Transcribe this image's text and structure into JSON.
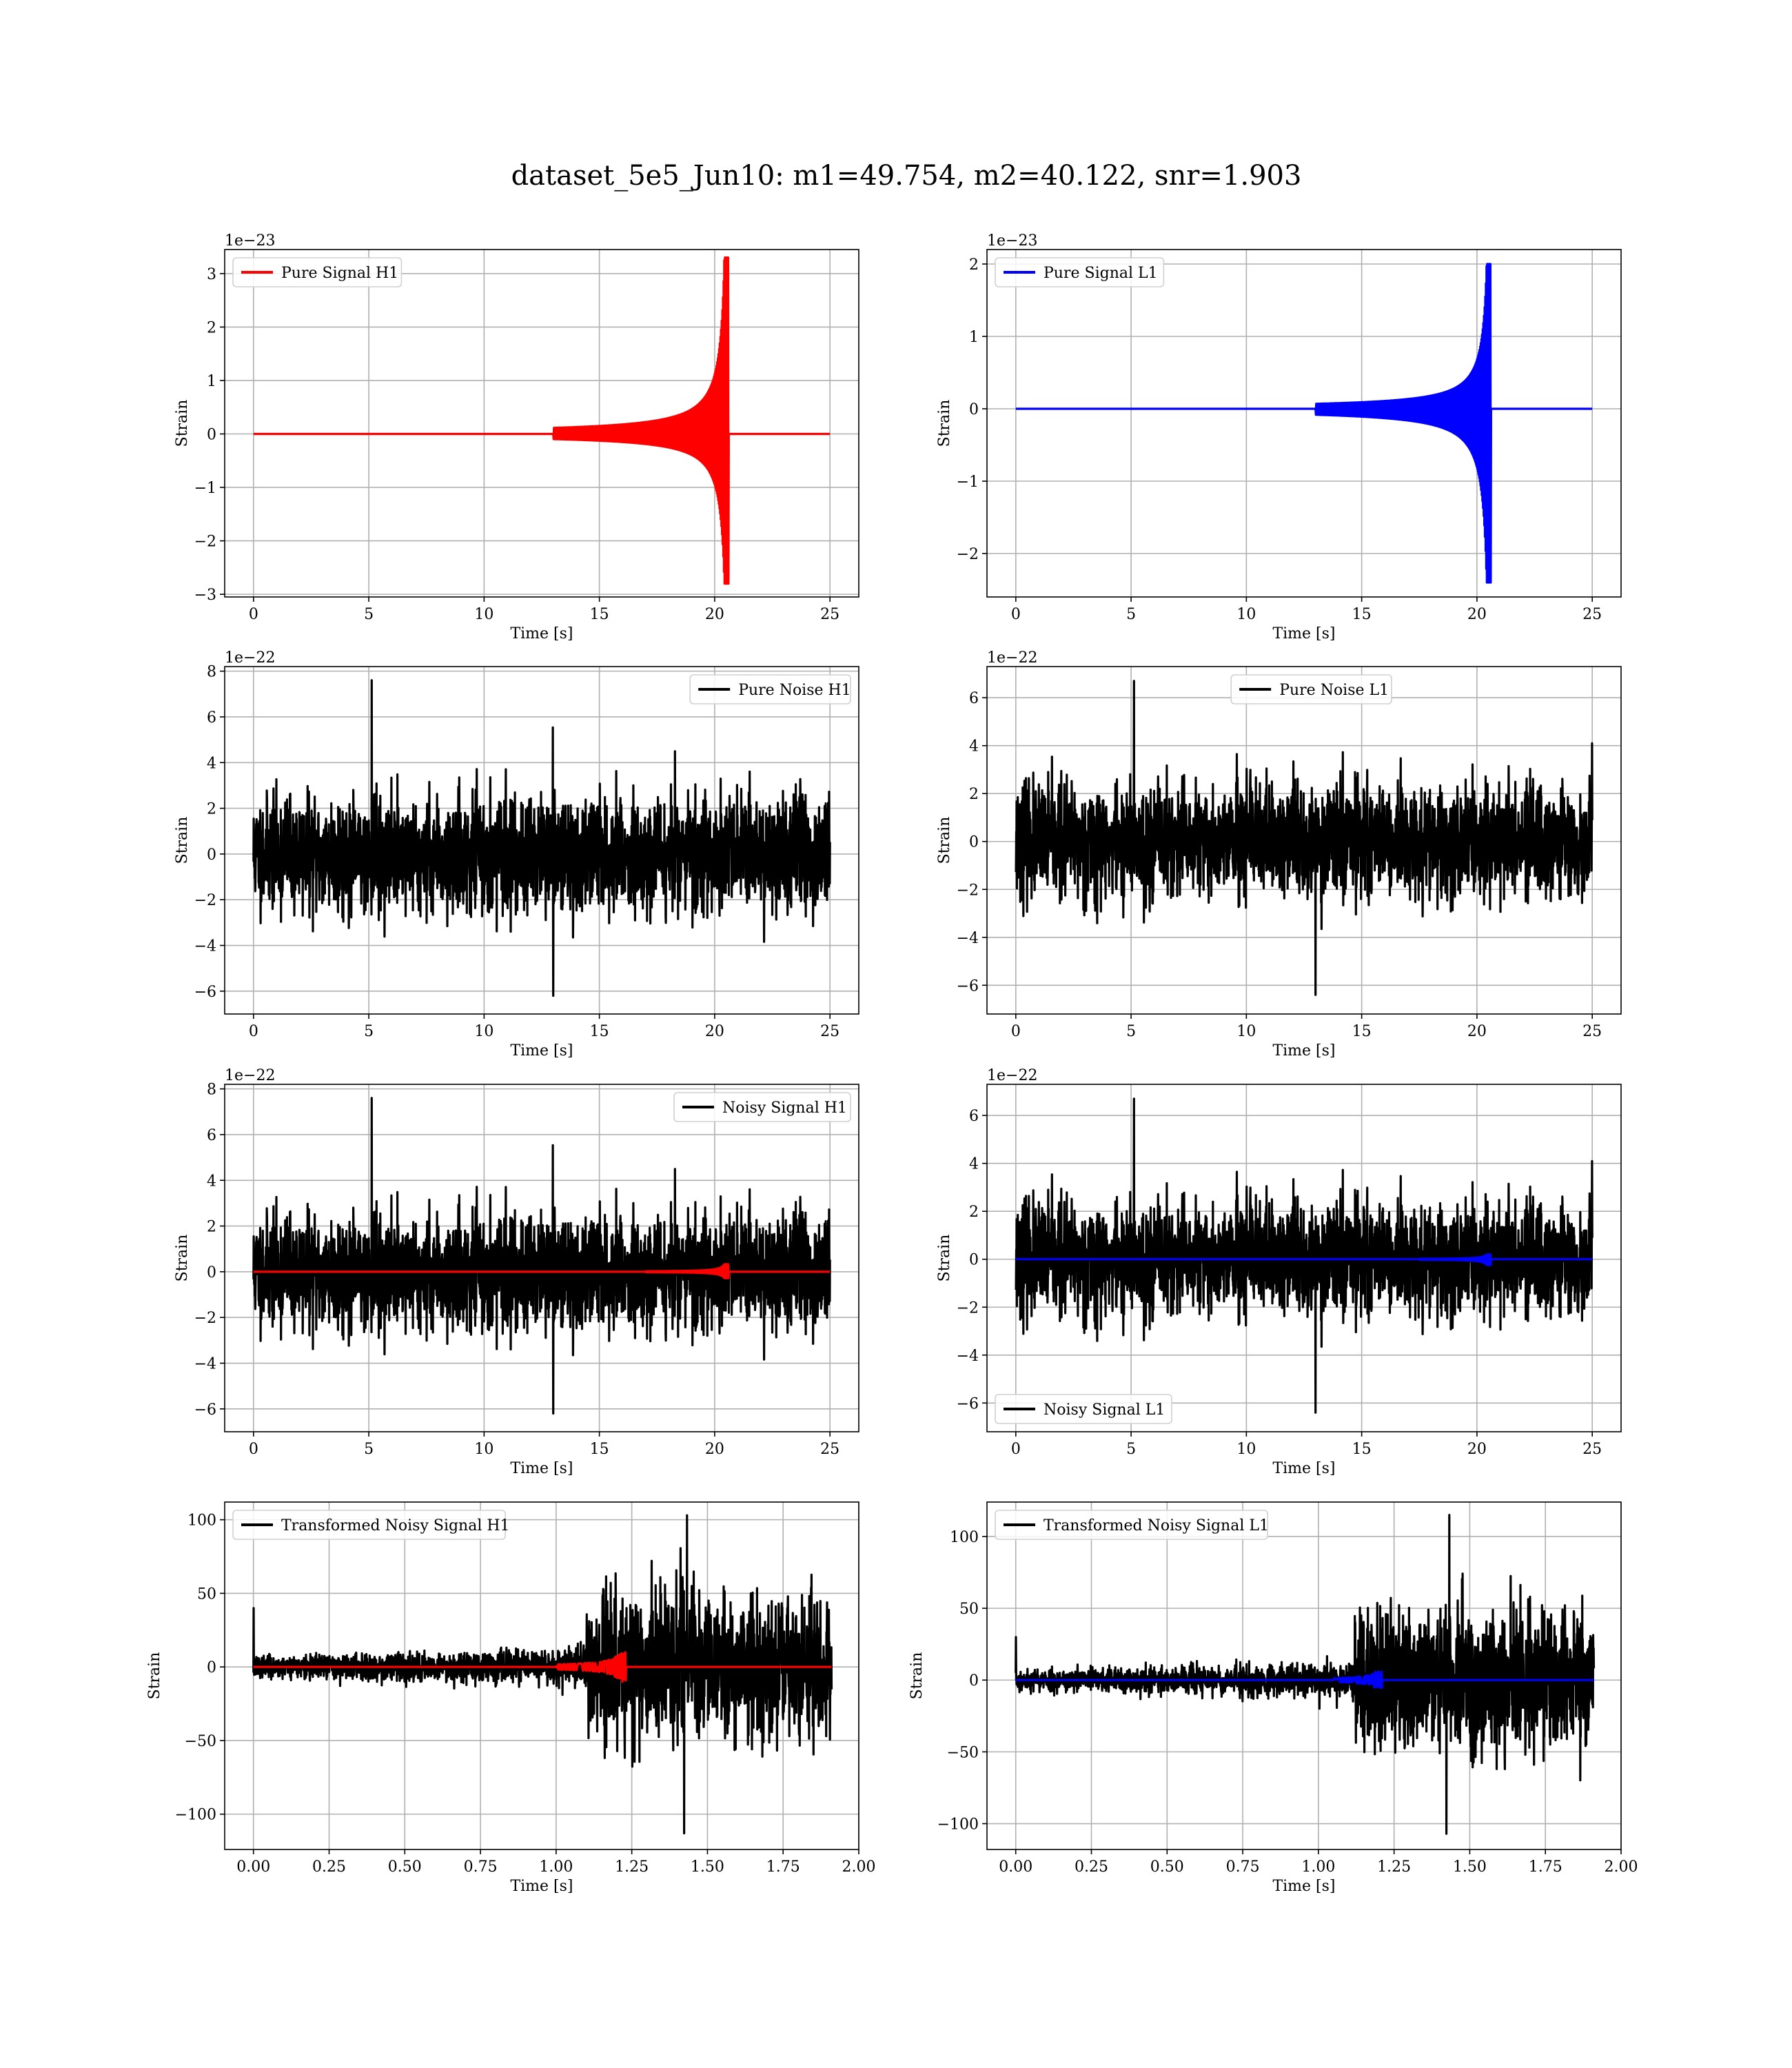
{
  "suptitle": "dataset_5e5_Jun10: m1=49.754, m2=40.122, snr=1.903",
  "chart_data": [
    {
      "id": "pure-signal-h1",
      "type": "line",
      "offset_label": "1e−23",
      "xlabel": "Time [s]",
      "ylabel": "Strain",
      "xlim": [
        -1.25,
        26.25
      ],
      "ylim": [
        -3.05,
        3.45
      ],
      "xticks": [
        0,
        5,
        10,
        15,
        20,
        25
      ],
      "yticks": [
        -3,
        -2,
        -1,
        0,
        1,
        2,
        3
      ],
      "ytick_labels": [
        "−3",
        "−2",
        "−1",
        "0",
        "1",
        "2",
        "3"
      ],
      "xtick_labels": [
        "0",
        "5",
        "10",
        "15",
        "20",
        "25"
      ],
      "grid": true,
      "legend": "top-left",
      "series": [
        {
          "name": "Pure Signal H1",
          "color": "#ff0000",
          "kind": "chirp",
          "t_range": [
            0,
            25
          ],
          "merger_time": 20.6,
          "peak_pos": 3.3,
          "peak_neg": -2.8,
          "onset_time": 13.0
        }
      ]
    },
    {
      "id": "pure-signal-l1",
      "type": "line",
      "offset_label": "1e−23",
      "xlabel": "Time [s]",
      "ylabel": "Strain",
      "xlim": [
        -1.25,
        26.25
      ],
      "ylim": [
        -2.6,
        2.2
      ],
      "xticks": [
        0,
        5,
        10,
        15,
        20,
        25
      ],
      "yticks": [
        -2,
        -1,
        0,
        1,
        2
      ],
      "ytick_labels": [
        "−2",
        "−1",
        "0",
        "1",
        "2"
      ],
      "xtick_labels": [
        "0",
        "5",
        "10",
        "15",
        "20",
        "25"
      ],
      "grid": true,
      "legend": "top-left",
      "series": [
        {
          "name": "Pure Signal L1",
          "color": "#0000ff",
          "kind": "chirp",
          "t_range": [
            0,
            25
          ],
          "merger_time": 20.6,
          "peak_pos": 2.0,
          "peak_neg": -2.4,
          "onset_time": 13.0
        }
      ]
    },
    {
      "id": "pure-noise-h1",
      "type": "line",
      "offset_label": "1e−22",
      "xlabel": "Time [s]",
      "ylabel": "Strain",
      "xlim": [
        -1.25,
        26.25
      ],
      "ylim": [
        -7.0,
        8.2
      ],
      "xticks": [
        0,
        5,
        10,
        15,
        20,
        25
      ],
      "yticks": [
        -6,
        -4,
        -2,
        0,
        2,
        4,
        6,
        8
      ],
      "ytick_labels": [
        "−6",
        "−4",
        "−2",
        "0",
        "2",
        "4",
        "6",
        "8"
      ],
      "xtick_labels": [
        "0",
        "5",
        "10",
        "15",
        "20",
        "25"
      ],
      "grid": true,
      "legend": "top-right",
      "series": [
        {
          "name": "Pure Noise H1",
          "color": "#000000",
          "kind": "noise",
          "t_range": [
            0,
            25
          ],
          "sigma": 1.2,
          "max": 7.6,
          "min": -6.2,
          "seed": 11
        }
      ]
    },
    {
      "id": "pure-noise-l1",
      "type": "line",
      "offset_label": "1e−22",
      "xlabel": "Time [s]",
      "ylabel": "Strain",
      "xlim": [
        -1.25,
        26.25
      ],
      "ylim": [
        -7.2,
        7.3
      ],
      "xticks": [
        0,
        5,
        10,
        15,
        20,
        25
      ],
      "yticks": [
        -6,
        -4,
        -2,
        0,
        2,
        4,
        6
      ],
      "ytick_labels": [
        "−6",
        "−4",
        "−2",
        "0",
        "2",
        "4",
        "6"
      ],
      "xtick_labels": [
        "0",
        "5",
        "10",
        "15",
        "20",
        "25"
      ],
      "grid": true,
      "legend": "top-center",
      "series": [
        {
          "name": "Pure Noise L1",
          "color": "#000000",
          "kind": "noise",
          "t_range": [
            0,
            25
          ],
          "sigma": 1.15,
          "max": 6.7,
          "min": -6.4,
          "seed": 23
        }
      ]
    },
    {
      "id": "noisy-signal-h1",
      "type": "line",
      "offset_label": "1e−22",
      "xlabel": "Time [s]",
      "ylabel": "Strain",
      "xlim": [
        -1.25,
        26.25
      ],
      "ylim": [
        -7.0,
        8.2
      ],
      "xticks": [
        0,
        5,
        10,
        15,
        20,
        25
      ],
      "yticks": [
        -6,
        -4,
        -2,
        0,
        2,
        4,
        6,
        8
      ],
      "ytick_labels": [
        "−6",
        "−4",
        "−2",
        "0",
        "2",
        "4",
        "6",
        "8"
      ],
      "xtick_labels": [
        "0",
        "5",
        "10",
        "15",
        "20",
        "25"
      ],
      "grid": true,
      "legend": "top-right",
      "series": [
        {
          "name": "Noisy Signal H1",
          "color": "#000000",
          "kind": "noise",
          "t_range": [
            0,
            25
          ],
          "sigma": 1.2,
          "max": 7.6,
          "min": -6.2,
          "seed": 11
        },
        {
          "name": "",
          "color": "#ff0000",
          "kind": "chirp",
          "t_range": [
            0,
            25
          ],
          "merger_time": 20.6,
          "peak_pos": 0.33,
          "peak_neg": -0.28,
          "onset_time": 17.0
        }
      ]
    },
    {
      "id": "noisy-signal-l1",
      "type": "line",
      "offset_label": "1e−22",
      "xlabel": "Time [s]",
      "ylabel": "Strain",
      "xlim": [
        -1.25,
        26.25
      ],
      "ylim": [
        -7.2,
        7.3
      ],
      "xticks": [
        0,
        5,
        10,
        15,
        20,
        25
      ],
      "yticks": [
        -6,
        -4,
        -2,
        0,
        2,
        4,
        6
      ],
      "ytick_labels": [
        "−6",
        "−4",
        "−2",
        "0",
        "2",
        "4",
        "6"
      ],
      "xtick_labels": [
        "0",
        "5",
        "10",
        "15",
        "20",
        "25"
      ],
      "grid": true,
      "legend": "bottom-left",
      "series": [
        {
          "name": "Noisy Signal L1",
          "color": "#000000",
          "kind": "noise",
          "t_range": [
            0,
            25
          ],
          "sigma": 1.15,
          "max": 6.7,
          "min": -6.4,
          "seed": 23
        },
        {
          "name": "",
          "color": "#0000ff",
          "kind": "chirp",
          "t_range": [
            0,
            25
          ],
          "merger_time": 20.6,
          "peak_pos": 0.2,
          "peak_neg": -0.24,
          "onset_time": 17.5
        }
      ]
    },
    {
      "id": "transformed-noisy-signal-h1",
      "type": "line",
      "offset_label": "",
      "xlabel": "Time [s]",
      "ylabel": "Strain",
      "xlim": [
        -0.095,
        2.0
      ],
      "ylim": [
        -124,
        112
      ],
      "xticks": [
        0,
        0.25,
        0.5,
        0.75,
        1.0,
        1.25,
        1.5,
        1.75,
        2.0
      ],
      "yticks": [
        -100,
        -50,
        0,
        50,
        100
      ],
      "ytick_labels": [
        "−100",
        "−50",
        "0",
        "50",
        "100"
      ],
      "xtick_labels": [
        "0.00",
        "0.25",
        "0.50",
        "0.75",
        "1.00",
        "1.25",
        "1.50",
        "1.75",
        "2.00"
      ],
      "grid": true,
      "legend": "top-left",
      "series": [
        {
          "name": "Transformed Noisy Signal H1",
          "color": "#000000",
          "kind": "whitened",
          "t_range": [
            0,
            1.91
          ],
          "step_time": 1.1,
          "seed": 37,
          "max": 103,
          "min": -113,
          "spike": 40
        },
        {
          "name": "",
          "color": "#ff0000",
          "kind": "burst",
          "t_range": [
            0,
            1.91
          ],
          "merger_time": 1.23,
          "peak": 10,
          "onset_time": 1.0
        }
      ]
    },
    {
      "id": "transformed-noisy-signal-l1",
      "type": "line",
      "offset_label": "",
      "xlabel": "Time [s]",
      "ylabel": "Strain",
      "xlim": [
        -0.095,
        2.0
      ],
      "ylim": [
        -118,
        124
      ],
      "xticks": [
        0,
        0.25,
        0.5,
        0.75,
        1.0,
        1.25,
        1.5,
        1.75,
        2.0
      ],
      "yticks": [
        -100,
        -50,
        0,
        50,
        100
      ],
      "ytick_labels": [
        "−100",
        "−50",
        "0",
        "50",
        "100"
      ],
      "xtick_labels": [
        "0.00",
        "0.25",
        "0.50",
        "0.75",
        "1.00",
        "1.25",
        "1.50",
        "1.75",
        "2.00"
      ],
      "grid": true,
      "legend": "top-left",
      "series": [
        {
          "name": "Transformed Noisy Signal L1",
          "color": "#000000",
          "kind": "whitened",
          "t_range": [
            0,
            1.91
          ],
          "step_time": 1.12,
          "seed": 53,
          "max": 115,
          "min": -107,
          "spike": 30
        },
        {
          "name": "",
          "color": "#0000ff",
          "kind": "burst",
          "t_range": [
            0,
            1.91
          ],
          "merger_time": 1.21,
          "peak": 6,
          "onset_time": 1.05
        }
      ]
    }
  ]
}
